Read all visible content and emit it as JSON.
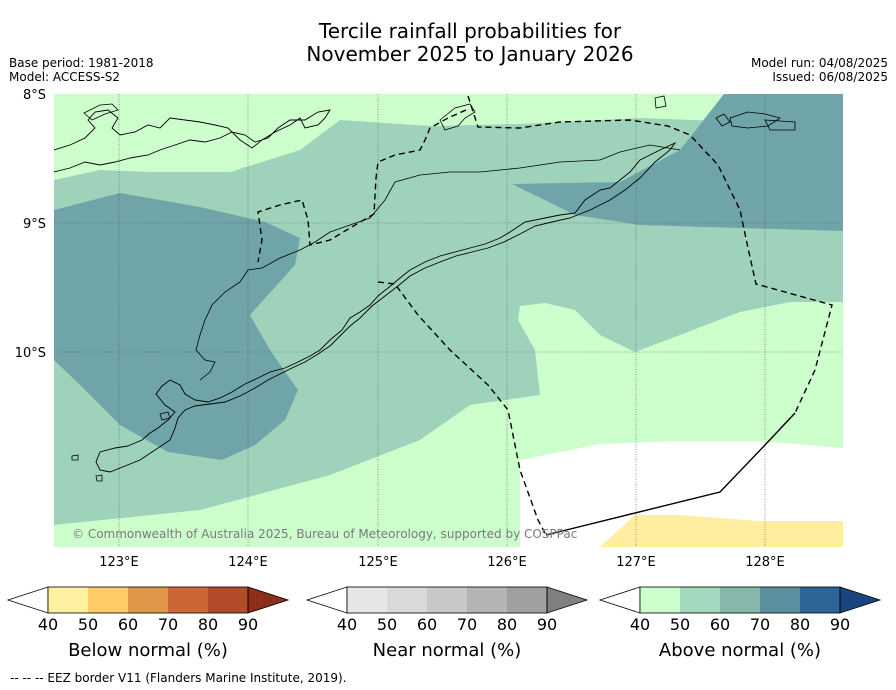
{
  "title": {
    "line1": "Tercile rainfall probabilities for",
    "line2": "November 2025 to January 2026"
  },
  "meta": {
    "base_period": "Base period: 1981-2018",
    "model": "Model: ACCESS-S2",
    "model_run": "Model run: 04/08/2025",
    "issued": "Issued: 06/08/2025"
  },
  "map": {
    "lat_labels": [
      "8°S",
      "9°S",
      "10°S"
    ],
    "lon_labels": [
      "123°E",
      "124°E",
      "125°E",
      "126°E",
      "127°E",
      "128°E"
    ],
    "credit": "© Commonwealth of Australia 2025, Bureau of Meteorology, supported by COSPPac",
    "colors": {
      "above_40_50": "#ccffcc",
      "above_50_60": "#9fd2bb",
      "above_60_70": "#6fa5a8",
      "below_40_50": "#ffeea0",
      "no_signal": "#ffffff"
    }
  },
  "colorbars": {
    "ticks": [
      "40",
      "50",
      "60",
      "70",
      "80",
      "90"
    ],
    "below": {
      "label": "Below normal (%)",
      "colors": [
        "#ffffff",
        "#fff0a0",
        "#ffcc66",
        "#e09848",
        "#cc6633",
        "#b34a28",
        "#8c2e1a"
      ]
    },
    "near": {
      "label": "Near normal (%)",
      "colors": [
        "#ffffff",
        "#e6e6e6",
        "#d9d9d9",
        "#c8c8c8",
        "#b4b4b4",
        "#a0a0a0",
        "#808080"
      ]
    },
    "above": {
      "label": "Above normal (%)",
      "colors": [
        "#ffffff",
        "#ccffcc",
        "#a3d9bc",
        "#85b8aa",
        "#5b8fa0",
        "#2e6599",
        "#1a4680"
      ]
    }
  },
  "footnote": "--  --  -- EEZ border V11 (Flanders Marine Institute, 2019)."
}
